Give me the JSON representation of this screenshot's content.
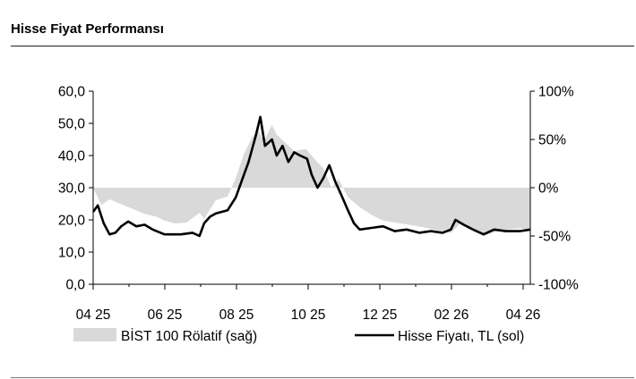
{
  "title": "Hisse Fiyat Performansı",
  "chart_data": {
    "type": "line",
    "title": "Hisse Fiyat Performansı",
    "x_ticks": [
      "04 25",
      "06 25",
      "08 25",
      "10 25",
      "12 25",
      "02 26",
      "04 26"
    ],
    "left_axis": {
      "ticks": [
        "0,0",
        "10,0",
        "20,0",
        "30,0",
        "40,0",
        "50,0",
        "60,0"
      ],
      "range": [
        0,
        60
      ]
    },
    "right_axis": {
      "ticks": [
        "-100%",
        "-50%",
        "0%",
        "50%",
        "100%"
      ],
      "range": [
        -100,
        100
      ]
    },
    "grid": false,
    "legend_position": "bottom",
    "series": [
      {
        "name": "BİST 100 Rölatif (sağ)",
        "type": "area",
        "axis": "right",
        "color": "#d9d9d9",
        "points": [
          [
            "2025-04-01",
            0
          ],
          [
            "2025-04-08",
            -18
          ],
          [
            "2025-04-15",
            -12
          ],
          [
            "2025-04-25",
            -17
          ],
          [
            "2025-05-05",
            -22
          ],
          [
            "2025-05-15",
            -27
          ],
          [
            "2025-05-25",
            -30
          ],
          [
            "2025-06-01",
            -34
          ],
          [
            "2025-06-10",
            -37
          ],
          [
            "2025-06-20",
            -36
          ],
          [
            "2025-07-01",
            -26
          ],
          [
            "2025-07-05",
            -32
          ],
          [
            "2025-07-15",
            -13
          ],
          [
            "2025-07-25",
            -9
          ],
          [
            "2025-08-01",
            10
          ],
          [
            "2025-08-08",
            35
          ],
          [
            "2025-08-15",
            52
          ],
          [
            "2025-08-20",
            60
          ],
          [
            "2025-08-25",
            48
          ],
          [
            "2025-09-01",
            65
          ],
          [
            "2025-09-05",
            55
          ],
          [
            "2025-09-12",
            47
          ],
          [
            "2025-09-20",
            38
          ],
          [
            "2025-09-30",
            40
          ],
          [
            "2025-10-08",
            29
          ],
          [
            "2025-10-15",
            20
          ],
          [
            "2025-10-22",
            0
          ],
          [
            "2025-10-28",
            9
          ],
          [
            "2025-11-05",
            -10
          ],
          [
            "2025-11-15",
            -20
          ],
          [
            "2025-11-25",
            -28
          ],
          [
            "2025-12-05",
            -34
          ],
          [
            "2025-12-20",
            -37
          ],
          [
            "2026-01-05",
            -40
          ],
          [
            "2026-01-20",
            -44
          ],
          [
            "2026-02-01",
            -47
          ],
          [
            "2026-02-10",
            -36
          ],
          [
            "2026-02-20",
            -43
          ],
          [
            "2026-03-01",
            -50
          ],
          [
            "2026-03-15",
            -44
          ],
          [
            "2026-04-01",
            -42
          ],
          [
            "2026-04-10",
            -44
          ]
        ]
      },
      {
        "name": "Hisse Fiyatı, TL (sol)",
        "type": "line",
        "axis": "left",
        "color": "#000000",
        "points": [
          [
            "2025-04-01",
            22.5
          ],
          [
            "2025-04-05",
            24.5
          ],
          [
            "2025-04-10",
            19
          ],
          [
            "2025-04-15",
            15.5
          ],
          [
            "2025-04-20",
            16
          ],
          [
            "2025-04-25",
            18
          ],
          [
            "2025-05-01",
            19.5
          ],
          [
            "2025-05-08",
            18
          ],
          [
            "2025-05-15",
            18.5
          ],
          [
            "2025-05-22",
            17
          ],
          [
            "2025-06-01",
            15.5
          ],
          [
            "2025-06-15",
            15.5
          ],
          [
            "2025-06-25",
            16
          ],
          [
            "2025-07-01",
            15
          ],
          [
            "2025-07-05",
            19
          ],
          [
            "2025-07-10",
            21
          ],
          [
            "2025-07-15",
            22
          ],
          [
            "2025-07-25",
            23
          ],
          [
            "2025-08-01",
            27
          ],
          [
            "2025-08-08",
            34
          ],
          [
            "2025-08-12",
            38
          ],
          [
            "2025-08-18",
            46
          ],
          [
            "2025-08-22",
            52
          ],
          [
            "2025-08-26",
            43
          ],
          [
            "2025-09-01",
            45
          ],
          [
            "2025-09-05",
            40
          ],
          [
            "2025-09-10",
            43
          ],
          [
            "2025-09-15",
            38
          ],
          [
            "2025-09-20",
            41
          ],
          [
            "2025-09-25",
            40
          ],
          [
            "2025-10-01",
            39
          ],
          [
            "2025-10-05",
            34
          ],
          [
            "2025-10-10",
            30
          ],
          [
            "2025-10-15",
            33
          ],
          [
            "2025-10-20",
            37
          ],
          [
            "2025-10-25",
            32
          ],
          [
            "2025-10-30",
            28
          ],
          [
            "2025-11-05",
            23
          ],
          [
            "2025-11-10",
            19
          ],
          [
            "2025-11-15",
            17
          ],
          [
            "2025-11-25",
            17.5
          ],
          [
            "2025-12-05",
            18
          ],
          [
            "2025-12-15",
            16.5
          ],
          [
            "2025-12-25",
            17
          ],
          [
            "2026-01-05",
            16
          ],
          [
            "2026-01-15",
            16.5
          ],
          [
            "2026-01-25",
            16
          ],
          [
            "2026-02-01",
            17
          ],
          [
            "2026-02-05",
            20
          ],
          [
            "2026-02-12",
            18.5
          ],
          [
            "2026-02-20",
            17
          ],
          [
            "2026-03-01",
            15.5
          ],
          [
            "2026-03-10",
            17
          ],
          [
            "2026-03-20",
            16.5
          ],
          [
            "2026-04-01",
            16.5
          ],
          [
            "2026-04-10",
            17
          ]
        ]
      }
    ]
  }
}
